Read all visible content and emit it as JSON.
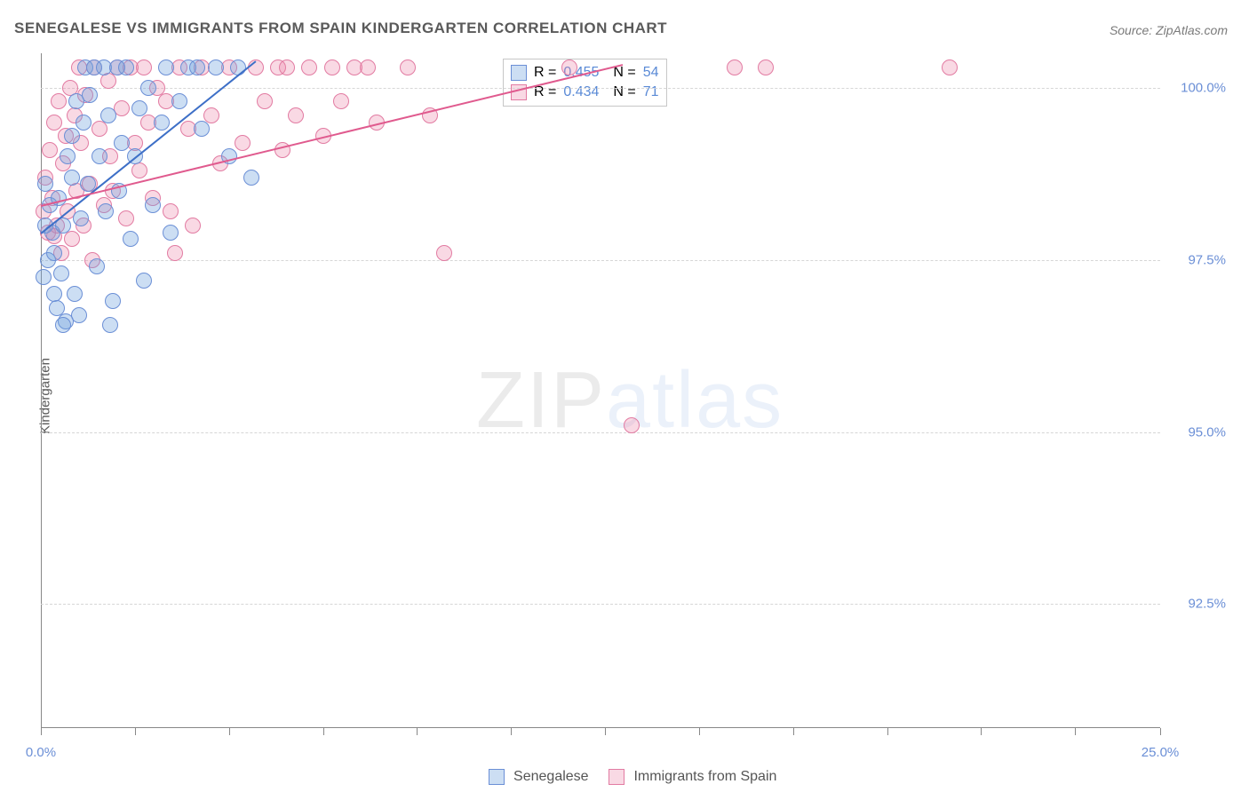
{
  "title": "SENEGALESE VS IMMIGRANTS FROM SPAIN KINDERGARTEN CORRELATION CHART",
  "source_label": "Source: ZipAtlas.com",
  "ylabel": "Kindergarten",
  "watermark": {
    "part1": "ZIP",
    "part2": "atlas"
  },
  "chart": {
    "type": "scatter",
    "xlim": [
      0.0,
      25.0
    ],
    "ylim": [
      90.7,
      100.5
    ],
    "ytick_labels": [
      "92.5%",
      "95.0%",
      "97.5%",
      "100.0%"
    ],
    "ytick_values": [
      92.5,
      95.0,
      97.5,
      100.0
    ],
    "xtick_positions": [
      0,
      2.1,
      4.2,
      6.3,
      8.4,
      10.5,
      12.6,
      14.7,
      16.8,
      18.9,
      21.0,
      23.1,
      25.0
    ],
    "xtick_labels": {
      "0": "0.0%",
      "25.0": "25.0%"
    },
    "grid_color": "#d6d6d6",
    "axis_color": "#888888",
    "tick_label_color": "#6b8fd6",
    "background_color": "#ffffff",
    "point_radius": 9,
    "series": [
      {
        "name": "Senegalese",
        "fill": "rgba(110,160,220,0.35)",
        "stroke": "#6b8fd6",
        "trend": {
          "x1": 0.0,
          "y1": 97.9,
          "x2": 4.8,
          "y2": 100.4,
          "color": "#3d6fc7",
          "width": 2
        },
        "R": "0.455",
        "N": "54",
        "points": [
          [
            0.05,
            97.25
          ],
          [
            0.1,
            98.0
          ],
          [
            0.15,
            97.5
          ],
          [
            0.2,
            98.3
          ],
          [
            0.25,
            97.9
          ],
          [
            0.1,
            98.6
          ],
          [
            0.3,
            97.0
          ],
          [
            0.35,
            96.8
          ],
          [
            0.3,
            97.6
          ],
          [
            0.4,
            98.4
          ],
          [
            0.5,
            98.0
          ],
          [
            0.45,
            97.3
          ],
          [
            0.55,
            96.6
          ],
          [
            0.6,
            99.0
          ],
          [
            0.7,
            98.7
          ],
          [
            0.7,
            99.3
          ],
          [
            0.75,
            97.0
          ],
          [
            0.8,
            99.8
          ],
          [
            0.85,
            96.7
          ],
          [
            0.9,
            98.1
          ],
          [
            0.95,
            99.5
          ],
          [
            1.0,
            100.3
          ],
          [
            1.05,
            98.6
          ],
          [
            1.1,
            99.9
          ],
          [
            1.2,
            100.3
          ],
          [
            1.25,
            97.4
          ],
          [
            1.3,
            99.0
          ],
          [
            1.4,
            100.3
          ],
          [
            1.45,
            98.2
          ],
          [
            1.5,
            99.6
          ],
          [
            1.6,
            96.9
          ],
          [
            1.7,
            100.3
          ],
          [
            1.75,
            98.5
          ],
          [
            1.8,
            99.2
          ],
          [
            1.9,
            100.3
          ],
          [
            2.0,
            97.8
          ],
          [
            2.1,
            99.0
          ],
          [
            2.2,
            99.7
          ],
          [
            2.3,
            97.2
          ],
          [
            2.4,
            100.0
          ],
          [
            2.5,
            98.3
          ],
          [
            2.7,
            99.5
          ],
          [
            2.8,
            100.3
          ],
          [
            2.9,
            97.9
          ],
          [
            3.1,
            99.8
          ],
          [
            3.3,
            100.3
          ],
          [
            3.5,
            100.3
          ],
          [
            3.6,
            99.4
          ],
          [
            3.9,
            100.3
          ],
          [
            4.2,
            99.0
          ],
          [
            4.4,
            100.3
          ],
          [
            4.7,
            98.7
          ],
          [
            0.5,
            96.55
          ],
          [
            1.55,
            96.55
          ]
        ]
      },
      {
        "name": "Immigrants from Spain",
        "fill": "rgba(235,130,165,0.30)",
        "stroke": "#e27ba2",
        "trend": {
          "x1": 0.0,
          "y1": 98.3,
          "x2": 13.0,
          "y2": 100.35,
          "color": "#e05a8e",
          "width": 2
        },
        "R": "0.434",
        "N": "71",
        "points": [
          [
            0.05,
            98.2
          ],
          [
            0.1,
            98.7
          ],
          [
            0.15,
            97.9
          ],
          [
            0.2,
            99.1
          ],
          [
            0.25,
            98.4
          ],
          [
            0.3,
            99.5
          ],
          [
            0.35,
            98.0
          ],
          [
            0.4,
            99.8
          ],
          [
            0.45,
            97.6
          ],
          [
            0.5,
            98.9
          ],
          [
            0.55,
            99.3
          ],
          [
            0.6,
            98.2
          ],
          [
            0.65,
            100.0
          ],
          [
            0.7,
            97.8
          ],
          [
            0.75,
            99.6
          ],
          [
            0.8,
            98.5
          ],
          [
            0.85,
            100.3
          ],
          [
            0.9,
            99.2
          ],
          [
            0.95,
            98.0
          ],
          [
            1.0,
            99.9
          ],
          [
            1.1,
            98.6
          ],
          [
            1.15,
            97.5
          ],
          [
            1.2,
            100.3
          ],
          [
            1.3,
            99.4
          ],
          [
            1.4,
            98.3
          ],
          [
            1.5,
            100.1
          ],
          [
            1.55,
            99.0
          ],
          [
            1.6,
            98.5
          ],
          [
            1.7,
            100.3
          ],
          [
            1.8,
            99.7
          ],
          [
            1.9,
            98.1
          ],
          [
            2.0,
            100.3
          ],
          [
            2.1,
            99.2
          ],
          [
            2.2,
            98.8
          ],
          [
            2.3,
            100.3
          ],
          [
            2.4,
            99.5
          ],
          [
            2.5,
            98.4
          ],
          [
            2.6,
            100.0
          ],
          [
            2.8,
            99.8
          ],
          [
            2.9,
            98.2
          ],
          [
            3.0,
            97.6
          ],
          [
            3.1,
            100.3
          ],
          [
            3.3,
            99.4
          ],
          [
            3.4,
            98.0
          ],
          [
            3.6,
            100.3
          ],
          [
            3.8,
            99.6
          ],
          [
            4.0,
            98.9
          ],
          [
            4.2,
            100.3
          ],
          [
            4.5,
            99.2
          ],
          [
            4.8,
            100.3
          ],
          [
            5.0,
            99.8
          ],
          [
            5.3,
            100.3
          ],
          [
            5.4,
            99.1
          ],
          [
            5.5,
            100.3
          ],
          [
            5.7,
            99.6
          ],
          [
            6.0,
            100.3
          ],
          [
            6.3,
            99.3
          ],
          [
            6.5,
            100.3
          ],
          [
            6.7,
            99.8
          ],
          [
            7.0,
            100.3
          ],
          [
            7.3,
            100.3
          ],
          [
            7.5,
            99.5
          ],
          [
            8.2,
            100.3
          ],
          [
            8.7,
            99.6
          ],
          [
            9.0,
            97.6
          ],
          [
            11.8,
            100.3
          ],
          [
            13.2,
            95.1
          ],
          [
            15.5,
            100.3
          ],
          [
            16.2,
            100.3
          ],
          [
            20.3,
            100.3
          ],
          [
            0.3,
            97.85
          ]
        ]
      }
    ]
  },
  "bottom_legend": {
    "series1": "Senegalese",
    "series2": "Immigrants from Spain"
  }
}
